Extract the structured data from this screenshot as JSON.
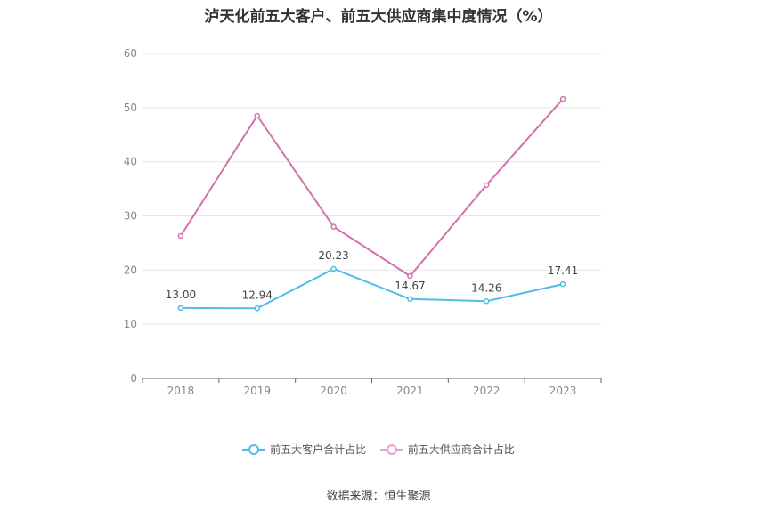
{
  "chart_data": {
    "type": "line",
    "title": "泸天化前五大客户、前五大供应商集中度情况（%）",
    "categories": [
      "2018",
      "2019",
      "2020",
      "2021",
      "2022",
      "2023"
    ],
    "series": [
      {
        "name": "前五大客户合计占比",
        "values": [
          13.0,
          12.94,
          20.23,
          14.67,
          14.26,
          17.41
        ],
        "labels": [
          "13.00",
          "12.94",
          "20.23",
          "14.67",
          "14.26",
          "17.41"
        ],
        "color": "#4dbde9"
      },
      {
        "name": "前五大供应商合计占比",
        "values": [
          26.3,
          48.5,
          28.0,
          18.9,
          35.7,
          51.6
        ],
        "color": "#d56fae"
      }
    ],
    "ylim": [
      0,
      60
    ],
    "yticks": [
      "0",
      "10",
      "20",
      "30",
      "40",
      "50",
      "60"
    ],
    "grid": true,
    "legend": "bottom"
  },
  "footer": {
    "source": "数据来源：恒生聚源"
  }
}
